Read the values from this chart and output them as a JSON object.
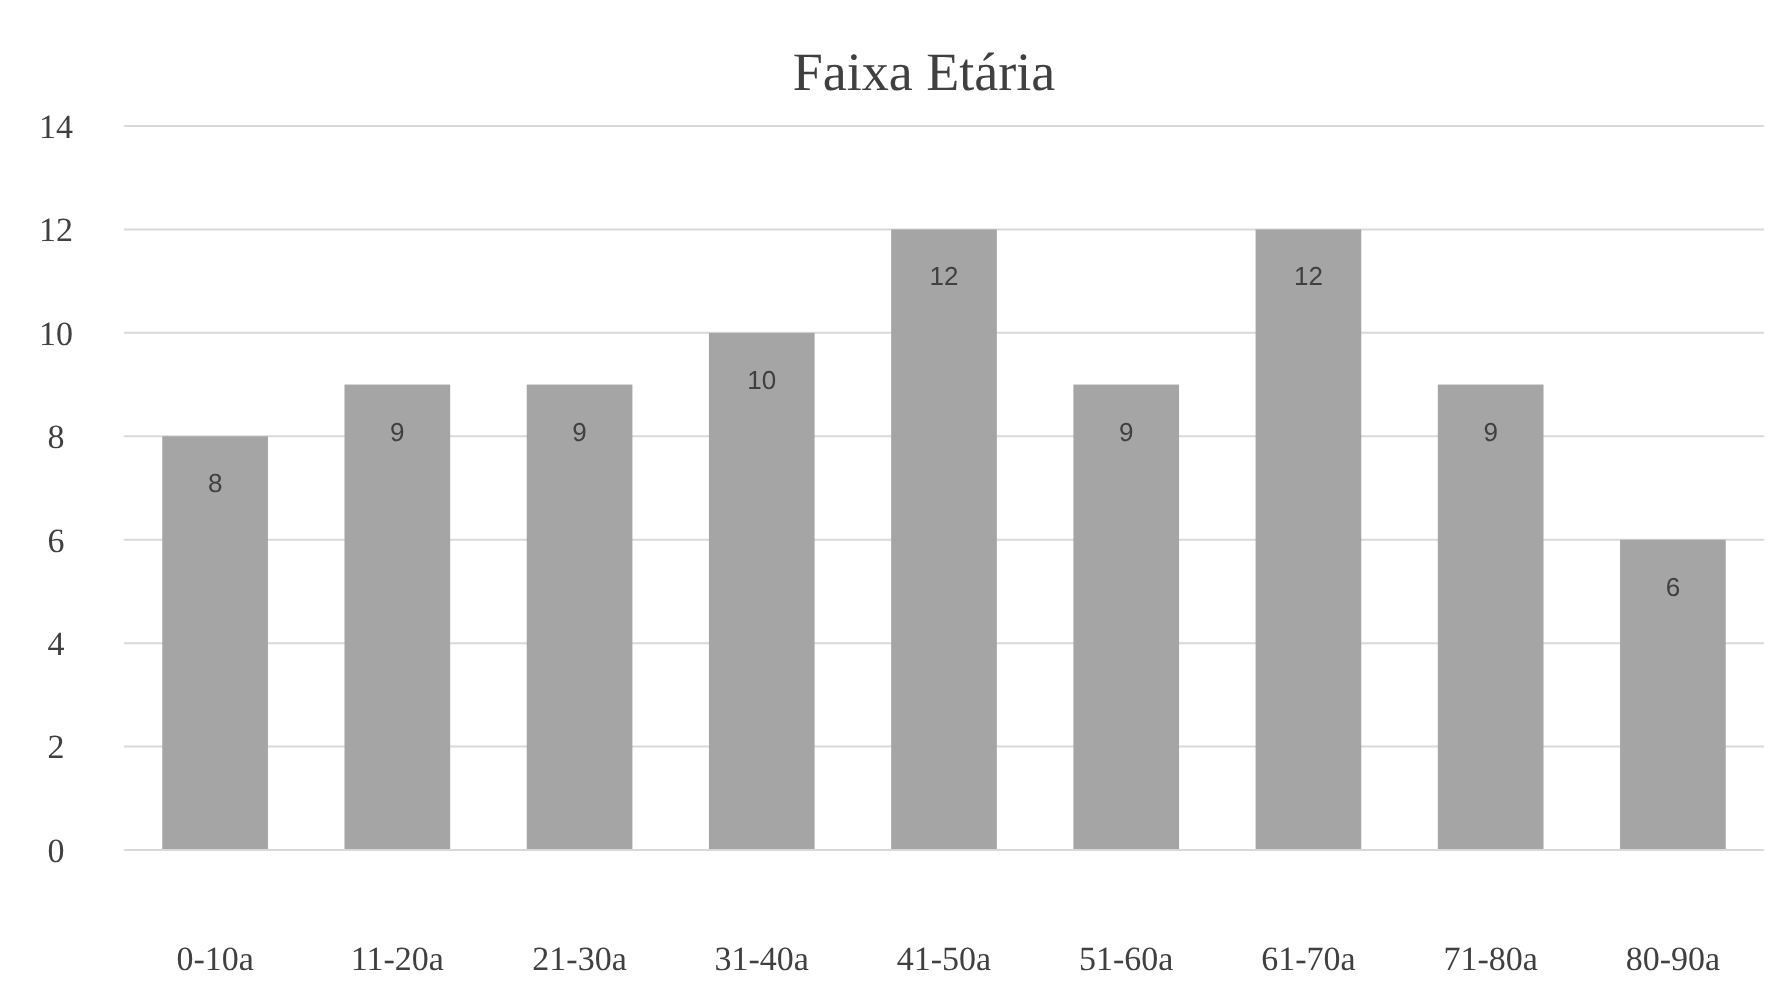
{
  "chart_data": {
    "type": "bar",
    "title": "Faixa Etária",
    "categories": [
      "0-10a",
      "11-20a",
      "21-30a",
      "31-40a",
      "41-50a",
      "51-60a",
      "61-70a",
      "71-80a",
      "80-90a"
    ],
    "values": [
      8,
      9,
      9,
      10,
      12,
      9,
      12,
      9,
      6
    ],
    "color": "#a5a5a5",
    "ylim": [
      0,
      14
    ],
    "yticks": [
      0,
      2,
      4,
      6,
      8,
      10,
      12,
      14
    ],
    "grid": "y",
    "data_labels": true
  }
}
